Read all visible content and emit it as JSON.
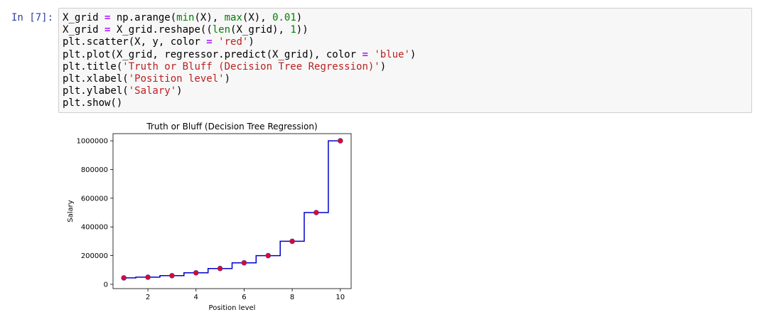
{
  "cell": {
    "prompt": "In [7]:",
    "code_lines": [
      [
        {
          "t": "X_grid ",
          "c": "id"
        },
        {
          "t": "=",
          "c": "op"
        },
        {
          "t": " np.arange(",
          "c": "id"
        },
        {
          "t": "min",
          "c": "bi"
        },
        {
          "t": "(X), ",
          "c": "id"
        },
        {
          "t": "max",
          "c": "bi"
        },
        {
          "t": "(X), ",
          "c": "id"
        },
        {
          "t": "0.01",
          "c": "num"
        },
        {
          "t": ")",
          "c": "id"
        }
      ],
      [
        {
          "t": "X_grid ",
          "c": "id"
        },
        {
          "t": "=",
          "c": "op"
        },
        {
          "t": " X_grid.reshape((",
          "c": "id"
        },
        {
          "t": "len",
          "c": "bi"
        },
        {
          "t": "(X_grid), ",
          "c": "id"
        },
        {
          "t": "1",
          "c": "num"
        },
        {
          "t": "))",
          "c": "id"
        }
      ],
      [
        {
          "t": "plt.scatter(X, y, color ",
          "c": "id"
        },
        {
          "t": "=",
          "c": "op"
        },
        {
          "t": " ",
          "c": "id"
        },
        {
          "t": "'red'",
          "c": "str"
        },
        {
          "t": ")",
          "c": "id"
        }
      ],
      [
        {
          "t": "plt.plot(X_grid, regressor.predict(X_grid), color ",
          "c": "id"
        },
        {
          "t": "=",
          "c": "op"
        },
        {
          "t": " ",
          "c": "id"
        },
        {
          "t": "'blue'",
          "c": "str"
        },
        {
          "t": ")",
          "c": "id"
        }
      ],
      [
        {
          "t": "plt.title(",
          "c": "id"
        },
        {
          "t": "'Truth or Bluff (Decision Tree Regression)'",
          "c": "str"
        },
        {
          "t": ")",
          "c": "id"
        }
      ],
      [
        {
          "t": "plt.xlabel(",
          "c": "id"
        },
        {
          "t": "'Position level'",
          "c": "str"
        },
        {
          "t": ")",
          "c": "id"
        }
      ],
      [
        {
          "t": "plt.ylabel(",
          "c": "id"
        },
        {
          "t": "'Salary'",
          "c": "str"
        },
        {
          "t": ")",
          "c": "id"
        }
      ],
      [
        {
          "t": "plt.show()",
          "c": "id"
        }
      ]
    ]
  },
  "colors": {
    "prompt": "#303f9f",
    "code_bg": "#f7f7f7",
    "operator": "#aa22ff",
    "builtin": "#008000",
    "number": "#008000",
    "string": "#ba2121",
    "scatter": "#e8002a",
    "scatter_edge": "#5a3d8f",
    "line": "#0000cc"
  },
  "chart_data": {
    "type": "scatter",
    "title": "Truth or Bluff (Decision Tree Regression)",
    "xlabel": "Position level",
    "ylabel": "Salary",
    "xlim": [
      0.55,
      10.45
    ],
    "ylim": [
      -30000,
      1050000
    ],
    "xticks": [
      2,
      4,
      6,
      8,
      10
    ],
    "yticks": [
      0,
      200000,
      400000,
      600000,
      800000,
      1000000
    ],
    "grid": false,
    "series": [
      {
        "kind": "scatter",
        "color": "red",
        "x": [
          1,
          2,
          3,
          4,
          5,
          6,
          7,
          8,
          9,
          10
        ],
        "y": [
          45000,
          50000,
          60000,
          80000,
          110000,
          150000,
          200000,
          300000,
          500000,
          1000000
        ]
      },
      {
        "kind": "step",
        "color": "blue",
        "x_min": 1,
        "x_max": 10,
        "breakpoints": [
          1.5,
          2.5,
          3.5,
          4.5,
          5.5,
          6.5,
          7.5,
          8.5,
          9.5
        ],
        "levels": [
          45000,
          50000,
          60000,
          80000,
          110000,
          150000,
          200000,
          300000,
          500000,
          1000000
        ]
      }
    ]
  }
}
